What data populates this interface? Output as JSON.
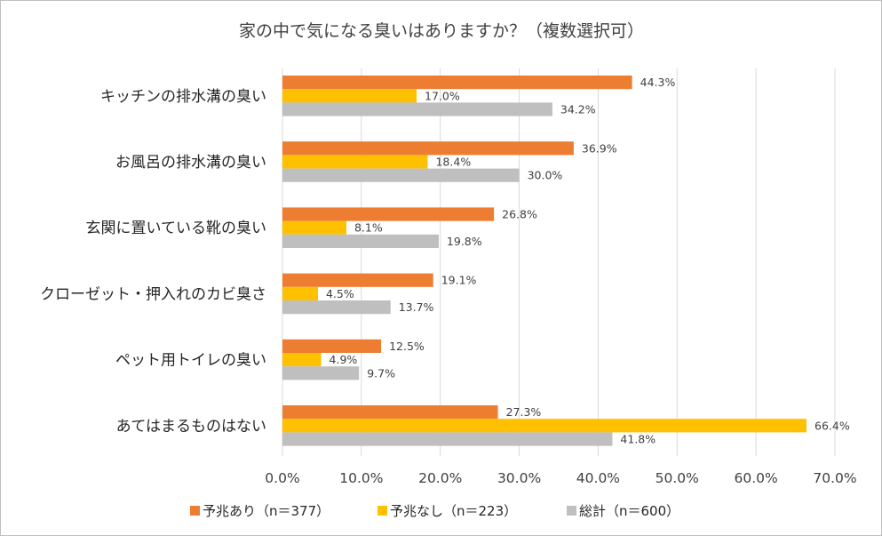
{
  "chart_data": {
    "type": "bar",
    "orientation": "horizontal",
    "title": "家の中で気になる臭いはありますか？（複数選択可）",
    "categories": [
      "キッチンの排水溝の臭い",
      "お風呂の排水溝の臭い",
      "玄関に置いている靴の臭い",
      "クローゼット・押入れのカビ臭さ",
      "ペット用トイレの臭い",
      "あてはまるものはない"
    ],
    "series": [
      {
        "name": "予兆あり（n＝377）",
        "color": "#ED7D31",
        "values": [
          44.3,
          36.9,
          26.8,
          19.1,
          12.5,
          27.3
        ],
        "labels": [
          "44.3%",
          "36.9%",
          "26.8%",
          "19.1%",
          "12.5%",
          "27.3%"
        ]
      },
      {
        "name": "予兆なし（n＝223）",
        "color": "#FFC000",
        "values": [
          17.0,
          18.4,
          8.1,
          4.5,
          4.9,
          66.4
        ],
        "labels": [
          "17.0%",
          "18.4%",
          "8.1%",
          "4.5%",
          "4.9%",
          "66.4%"
        ]
      },
      {
        "name": "総計（n＝600）",
        "color": "#BFBFBF",
        "values": [
          34.2,
          30.0,
          19.8,
          13.7,
          9.7,
          41.8
        ],
        "labels": [
          "34.2%",
          "30.0%",
          "19.8%",
          "13.7%",
          "9.7%",
          "41.8%"
        ]
      }
    ],
    "xlim": [
      0,
      70
    ],
    "xticks": [
      0,
      10,
      20,
      30,
      40,
      50,
      60,
      70
    ],
    "xtick_labels": [
      "0.0%",
      "10.0%",
      "20.0%",
      "30.0%",
      "40.0%",
      "50.0%",
      "60.0%",
      "70.0%"
    ],
    "grid": "vertical",
    "legend_position": "bottom-center"
  }
}
